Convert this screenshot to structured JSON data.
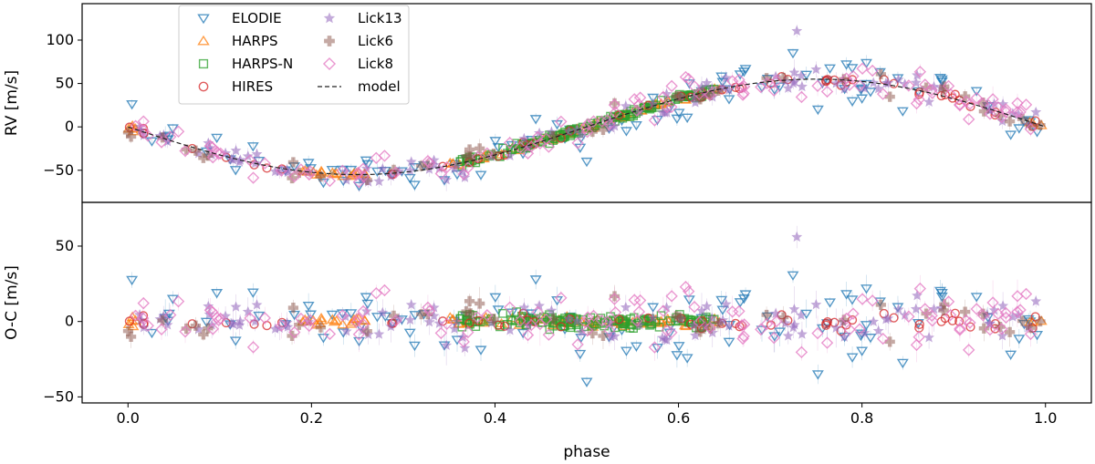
{
  "chart_data": {
    "type": "scatter",
    "x_axis": {
      "label": "phase",
      "range": [
        -0.05,
        1.05
      ],
      "ticks": [
        0.0,
        0.2,
        0.4,
        0.6,
        0.8,
        1.0
      ],
      "tick_labels": [
        "0.0",
        "0.2",
        "0.4",
        "0.6",
        "0.8",
        "1.0"
      ]
    },
    "panels": [
      {
        "id": "rv",
        "ylabel": "RV [m/s]",
        "ylim": [
          -87,
          142
        ],
        "yticks": [
          -50,
          0,
          50,
          100
        ],
        "ytick_labels": [
          "−50",
          "0",
          "50",
          "100"
        ]
      },
      {
        "id": "oc",
        "ylabel": "O-C [m/s]",
        "ylim": [
          -54,
          79
        ],
        "yticks": [
          -50,
          0,
          50
        ],
        "ytick_labels": [
          "−50",
          "0",
          "50"
        ]
      }
    ],
    "model": {
      "name": "model",
      "style": "dashed",
      "color": "#222222",
      "amplitude": 55,
      "phase_offset": 0.0,
      "formula": "RV = -55 * sin(2*pi*phase)"
    },
    "series": [
      {
        "name": "ELODIE",
        "marker": "triangle-down",
        "color": "#1f77b4",
        "phase_ranges": [
          [
            0.0,
            1.0
          ]
        ],
        "scatter": 13,
        "count": 110
      },
      {
        "name": "HARPS",
        "marker": "triangle-up",
        "color": "#ff7f0e",
        "phase_ranges": [
          [
            0.0,
            0.01
          ],
          [
            0.19,
            0.26
          ],
          [
            0.35,
            0.65
          ],
          [
            0.98,
            1.0
          ]
        ],
        "scatter": 1.5,
        "count": 110
      },
      {
        "name": "HARPS-N",
        "marker": "square",
        "color": "#2ca02c",
        "phase_ranges": [
          [
            0.36,
            0.64
          ]
        ],
        "scatter": 2,
        "count": 150
      },
      {
        "name": "HIRES",
        "marker": "circle",
        "color": "#d62728",
        "phase_ranges": [
          [
            0.0,
            1.0
          ]
        ],
        "scatter": 3,
        "count": 55
      },
      {
        "name": "Lick13",
        "marker": "star",
        "color": "#9467bd",
        "phase_ranges": [
          [
            0.0,
            1.0
          ]
        ],
        "scatter": 7,
        "count": 110
      },
      {
        "name": "Lick6",
        "marker": "plus-filled",
        "color": "#8c564b",
        "phase_ranges": [
          [
            0.0,
            1.0
          ]
        ],
        "scatter": 6,
        "count": 45
      },
      {
        "name": "Lick8",
        "marker": "diamond",
        "color": "#e377c2",
        "phase_ranges": [
          [
            0.0,
            1.0
          ]
        ],
        "scatter": 9,
        "count": 120
      }
    ],
    "legend": {
      "placement": "upper-left",
      "entries": [
        "ELODIE",
        "HARPS",
        "HARPS-N",
        "HIRES",
        "Lick13",
        "Lick6",
        "Lick8",
        "model"
      ]
    }
  }
}
